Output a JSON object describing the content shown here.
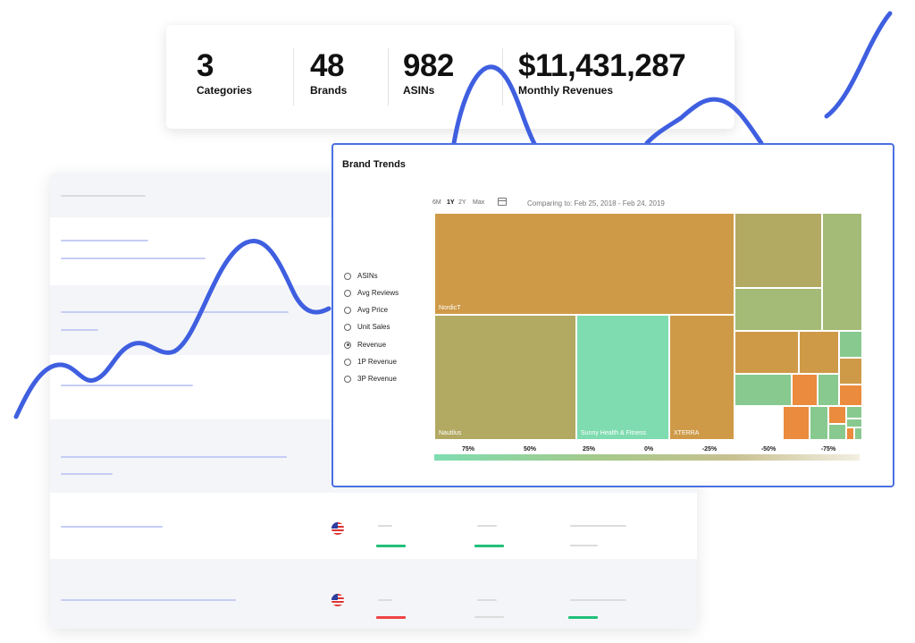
{
  "stats": [
    {
      "value": "3",
      "label": "Categories"
    },
    {
      "value": "48",
      "label": "Brands"
    },
    {
      "value": "982",
      "label": "ASINs"
    },
    {
      "value": "$11,431,287",
      "label": "Monthly Revenues"
    }
  ],
  "trends": {
    "title": "Brand Trends",
    "metrics": [
      "ASINs",
      "Avg Reviews",
      "Avg Price",
      "Unit Sales",
      "Revenue",
      "1P Revenue",
      "3P Revenue"
    ],
    "selected_metric": "Revenue",
    "ranges": [
      "6M",
      "1Y",
      "2Y",
      "Max"
    ],
    "active_range": "1Y",
    "compare_text": "Comparing to: Feb 25, 2018 - Feb 24, 2019",
    "treemap_labels": [
      "NordicT",
      "Nautilus",
      "Sunny Health & Fitness",
      "XTERRA"
    ],
    "legend_ticks": [
      "75%",
      "50%",
      "25%",
      "0%",
      "-25%",
      "-50%",
      "-75%"
    ]
  },
  "colors": {
    "accent": "#4a6fe3",
    "squiggle": "#3f5fe0",
    "tan": "#cf9a48",
    "olive": "#b2a962",
    "mint": "#7fdcb0",
    "green": "#88c98f",
    "sage": "#a3bb76",
    "orange": "#ea8b3d"
  },
  "icons": [
    "calendar-icon",
    "us-flag-icon"
  ]
}
